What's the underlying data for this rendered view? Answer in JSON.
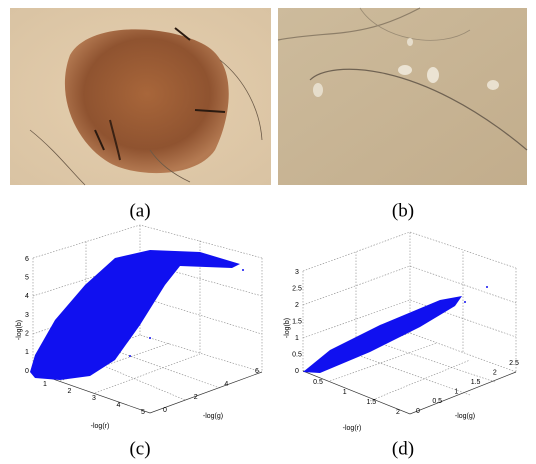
{
  "figure": {
    "panels": [
      {
        "caption": "(a)"
      },
      {
        "caption": "(b)"
      },
      {
        "caption": "(c)",
        "x_label": "-log(r)",
        "y_label": "-log(g)",
        "z_label": "-log(b)",
        "x_ticks": [
          1,
          2,
          3,
          4,
          5
        ],
        "y_ticks": [
          0,
          2,
          4,
          6
        ],
        "z_ticks": [
          0,
          1,
          2,
          3,
          4,
          5,
          6
        ]
      },
      {
        "caption": "(d)",
        "x_label": "-log(r)",
        "y_label": "-log(g)",
        "z_label": "-log(b)",
        "x_ticks": [
          0.5,
          1,
          1.5,
          2
        ],
        "y_ticks": [
          0,
          0.5,
          1,
          1.5,
          2,
          2.5
        ],
        "z_ticks": [
          0,
          0.5,
          1,
          1.5,
          2,
          2.5,
          3
        ]
      }
    ]
  }
}
